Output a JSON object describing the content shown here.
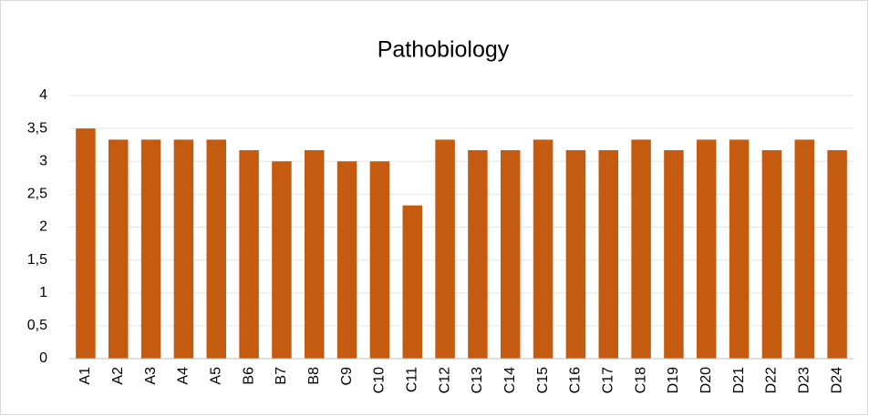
{
  "chart_data": {
    "type": "bar",
    "title": "Pathobiology",
    "categories": [
      "A1",
      "A2",
      "A3",
      "A4",
      "A5",
      "B6",
      "B7",
      "B8",
      "C9",
      "C10",
      "C11",
      "C12",
      "C13",
      "C14",
      "C15",
      "C16",
      "C17",
      "C18",
      "D19",
      "D20",
      "D21",
      "D22",
      "D23",
      "D24"
    ],
    "values": [
      3.5,
      3.33,
      3.33,
      3.33,
      3.33,
      3.17,
      3.0,
      3.17,
      3.0,
      3.0,
      2.33,
      3.33,
      3.17,
      3.17,
      3.33,
      3.17,
      3.17,
      3.33,
      3.17,
      3.33,
      3.33,
      3.17,
      3.33,
      3.17
    ],
    "color": "#c55a11",
    "ylim": [
      0,
      4
    ],
    "yticks": [
      0,
      {
        "value": 0.5,
        "label": "0,5"
      },
      1,
      {
        "value": 1.5,
        "label": "1,5"
      },
      2,
      {
        "value": 2.5,
        "label": "2,5"
      },
      3,
      {
        "value": 3.5,
        "label": "3,5"
      },
      4
    ],
    "grid": true
  }
}
